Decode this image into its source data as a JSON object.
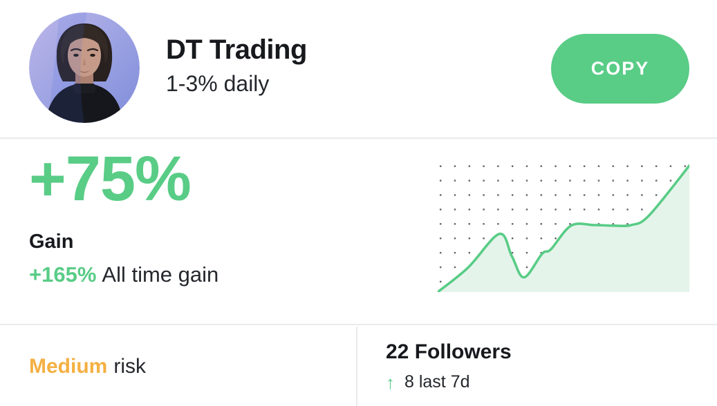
{
  "header": {
    "title": "DT Trading",
    "subtitle": "1-3% daily",
    "copy_button_label": "COPY",
    "avatar_icon": "woman-portrait-purple-light"
  },
  "gain": {
    "value": "+75%",
    "label": "Gain",
    "all_time_value": "+165%",
    "all_time_label": "All time gain"
  },
  "risk": {
    "level": "Medium",
    "label": "risk"
  },
  "followers": {
    "count_text": "22 Followers",
    "trend_arrow": "↑",
    "trend_text": "8 last 7d"
  },
  "colors": {
    "accent_green": "#59cc86",
    "chart_fill_green": "#e5f4eb",
    "risk_orange": "#f4b042",
    "text_dark": "#17191d",
    "text_body": "#24272c",
    "divider": "#e8eaec",
    "dot_grid": "#42474c"
  },
  "chart_data": {
    "type": "area",
    "title": "Performance sparkline (no axes shown)",
    "x_range": [
      0,
      100
    ],
    "y_range": [
      0,
      100
    ],
    "grid": "dotted",
    "legend": false,
    "line_color": "#59cc86",
    "fill_color": "#e5f4eb",
    "dot_color": "#42474c",
    "points": [
      {
        "x": 0,
        "y": 0
      },
      {
        "x": 12,
        "y": 19
      },
      {
        "x": 24.5,
        "y": 45.5
      },
      {
        "x": 29.5,
        "y": 28
      },
      {
        "x": 34.3,
        "y": 11.5
      },
      {
        "x": 41.5,
        "y": 30
      },
      {
        "x": 45,
        "y": 33.5
      },
      {
        "x": 53,
        "y": 52
      },
      {
        "x": 62,
        "y": 52.5
      },
      {
        "x": 70,
        "y": 52
      },
      {
        "x": 77,
        "y": 52.5
      },
      {
        "x": 84,
        "y": 60
      },
      {
        "x": 100,
        "y": 99
      }
    ]
  }
}
